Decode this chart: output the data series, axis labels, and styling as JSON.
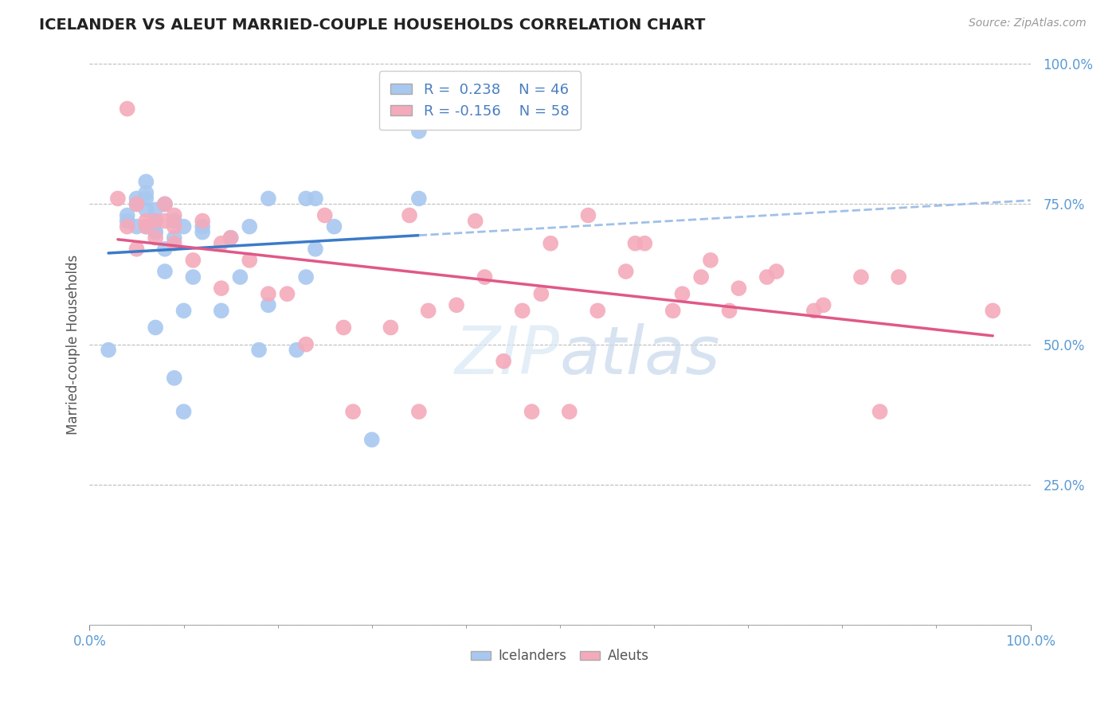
{
  "title": "ICELANDER VS ALEUT MARRIED-COUPLE HOUSEHOLDS CORRELATION CHART",
  "source": "Source: ZipAtlas.com",
  "ylabel": "Married-couple Households",
  "xlim": [
    0.0,
    1.0
  ],
  "ylim": [
    0.0,
    1.0
  ],
  "legend_r1": "R =  0.238",
  "legend_n1": "N = 46",
  "legend_r2": "R = -0.156",
  "legend_n2": "N = 58",
  "icelander_color": "#A8C8F0",
  "aleut_color": "#F4AABB",
  "icelander_line_color": "#3B7BC8",
  "aleut_line_color": "#E05888",
  "dashed_line_color": "#A0C0E8",
  "grid_color": "#BBBBBB",
  "background_color": "#FFFFFF",
  "title_color": "#222222",
  "label_color": "#5B9BD5",
  "icelander_x": [
    0.02,
    0.04,
    0.04,
    0.05,
    0.05,
    0.05,
    0.06,
    0.06,
    0.06,
    0.06,
    0.06,
    0.07,
    0.07,
    0.07,
    0.07,
    0.07,
    0.08,
    0.08,
    0.08,
    0.08,
    0.09,
    0.09,
    0.09,
    0.1,
    0.1,
    0.1,
    0.11,
    0.12,
    0.12,
    0.14,
    0.15,
    0.16,
    0.17,
    0.18,
    0.19,
    0.19,
    0.22,
    0.23,
    0.23,
    0.24,
    0.24,
    0.26,
    0.3,
    0.35,
    0.35,
    0.35
  ],
  "icelander_y": [
    0.49,
    0.73,
    0.72,
    0.71,
    0.75,
    0.76,
    0.71,
    0.74,
    0.76,
    0.77,
    0.79,
    0.7,
    0.72,
    0.74,
    0.53,
    0.7,
    0.75,
    0.63,
    0.67,
    0.75,
    0.44,
    0.69,
    0.72,
    0.38,
    0.56,
    0.71,
    0.62,
    0.7,
    0.71,
    0.56,
    0.69,
    0.62,
    0.71,
    0.49,
    0.76,
    0.57,
    0.49,
    0.76,
    0.62,
    0.67,
    0.76,
    0.71,
    0.33,
    0.76,
    0.88,
    0.95
  ],
  "aleut_x": [
    0.03,
    0.04,
    0.04,
    0.05,
    0.05,
    0.06,
    0.06,
    0.07,
    0.07,
    0.08,
    0.08,
    0.09,
    0.09,
    0.09,
    0.11,
    0.12,
    0.14,
    0.14,
    0.15,
    0.17,
    0.19,
    0.21,
    0.23,
    0.25,
    0.27,
    0.28,
    0.32,
    0.34,
    0.35,
    0.36,
    0.39,
    0.41,
    0.42,
    0.44,
    0.46,
    0.47,
    0.48,
    0.49,
    0.51,
    0.53,
    0.54,
    0.57,
    0.58,
    0.59,
    0.62,
    0.63,
    0.65,
    0.66,
    0.68,
    0.69,
    0.72,
    0.73,
    0.77,
    0.78,
    0.82,
    0.84,
    0.86,
    0.96
  ],
  "aleut_y": [
    0.76,
    0.92,
    0.71,
    0.67,
    0.75,
    0.71,
    0.72,
    0.69,
    0.72,
    0.72,
    0.75,
    0.68,
    0.71,
    0.73,
    0.65,
    0.72,
    0.6,
    0.68,
    0.69,
    0.65,
    0.59,
    0.59,
    0.5,
    0.73,
    0.53,
    0.38,
    0.53,
    0.73,
    0.38,
    0.56,
    0.57,
    0.72,
    0.62,
    0.47,
    0.56,
    0.38,
    0.59,
    0.68,
    0.38,
    0.73,
    0.56,
    0.63,
    0.68,
    0.68,
    0.56,
    0.59,
    0.62,
    0.65,
    0.56,
    0.6,
    0.62,
    0.63,
    0.56,
    0.57,
    0.62,
    0.38,
    0.62,
    0.56
  ]
}
